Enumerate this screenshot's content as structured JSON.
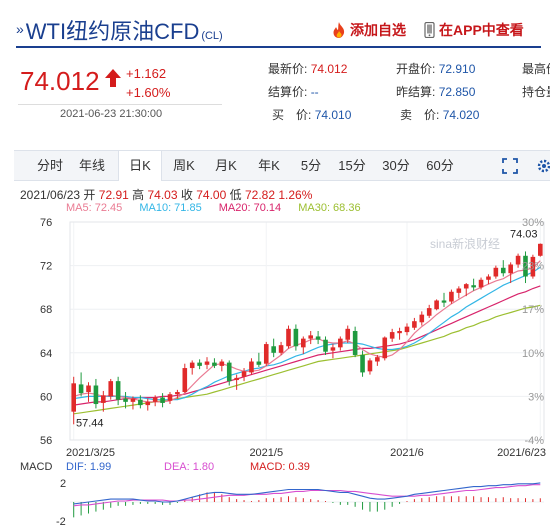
{
  "header": {
    "prefix": "»",
    "title": "WTI纽约原油CFD",
    "code": "(CL)",
    "favorite_label": "添加自选",
    "app_label": "在APP中查看"
  },
  "quote": {
    "price": "74.012",
    "change": "+1.162",
    "change_pct": "+1.60%",
    "datetime": "2021-06-23 21:30:00",
    "fields": {
      "latest_label": "最新价:",
      "latest_value": "74.012",
      "open_label": "开盘价:",
      "open_value": "72.910",
      "high_label": "最高价",
      "settle_label": "结算价:",
      "settle_value": "--",
      "prev_settle_label": "昨结算:",
      "prev_settle_value": "72.850",
      "oi_label": "持仓量",
      "buy_label": "买　价:",
      "buy_value": "74.010",
      "sell_label": "卖　价:",
      "sell_value": "74.020"
    }
  },
  "tabs": [
    "分时",
    "年线",
    "日K",
    "周K",
    "月K",
    "年K",
    "5分",
    "15分",
    "30分",
    "60分"
  ],
  "active_tab": "日K",
  "chart_info": {
    "date": "2021/06/23",
    "open_label": "开",
    "open": "72.91",
    "high_label": "高",
    "high": "74.03",
    "close_label": "收",
    "close": "74.00",
    "low_label": "低",
    "low": "72.82",
    "pct": "1.26%"
  },
  "ma_labels": {
    "ma5": "MA5: 72.45",
    "ma10": "MA10: 71.85",
    "ma20": "MA20: 70.14",
    "ma30": "MA30: 68.36"
  },
  "macd_labels": {
    "name": "MACD",
    "dif": "DIF: 1.99",
    "dea": "DEA: 1.80",
    "macd": "MACD: 0.39"
  },
  "watermark": "sina新浪财经",
  "colors": {
    "up": "#e02a2a",
    "down": "#1f9a3f",
    "ma5": "#ea7b93",
    "ma10": "#33b6e6",
    "ma20": "#d8246b",
    "ma30": "#9cbf31",
    "dif": "#3366cc",
    "dea": "#d84fd0",
    "brand": "#1a3f8f"
  },
  "chart_data": {
    "type": "candlestick",
    "y_ticks": [
      "76",
      "72",
      "68",
      "64",
      "60",
      "56"
    ],
    "pct_ticks": [
      "30%",
      "23%",
      "17%",
      "10%",
      "3%",
      "-4%"
    ],
    "x_ticks": [
      "2021/3/25",
      "2021/5",
      "2021/6",
      "2021/6/23"
    ],
    "ylim": [
      56,
      76
    ],
    "max_label": "74.03",
    "min_label": "57.44",
    "candles": [
      [
        58.6,
        61.8,
        57.44,
        61.2
      ],
      [
        61.1,
        62.2,
        60.0,
        60.3
      ],
      [
        60.4,
        61.3,
        59.5,
        61.0
      ],
      [
        61.0,
        61.6,
        58.9,
        59.3
      ],
      [
        59.4,
        60.5,
        58.6,
        60.1
      ],
      [
        60.0,
        61.6,
        59.7,
        61.4
      ],
      [
        61.4,
        61.8,
        59.2,
        59.7
      ],
      [
        59.8,
        60.4,
        58.9,
        59.5
      ],
      [
        59.5,
        60.0,
        58.8,
        59.8
      ],
      [
        59.7,
        60.1,
        58.9,
        59.2
      ],
      [
        59.2,
        59.8,
        58.7,
        59.5
      ],
      [
        59.5,
        60.1,
        59.1,
        59.9
      ],
      [
        59.9,
        60.3,
        59.0,
        59.4
      ],
      [
        59.6,
        60.4,
        59.3,
        60.2
      ],
      [
        60.2,
        60.6,
        59.8,
        60.4
      ],
      [
        60.4,
        63.0,
        60.3,
        62.6
      ],
      [
        62.6,
        63.3,
        62.0,
        63.1
      ],
      [
        63.1,
        63.4,
        62.5,
        62.8
      ],
      [
        62.9,
        63.6,
        62.5,
        63.2
      ],
      [
        63.1,
        63.5,
        62.6,
        62.8
      ],
      [
        62.8,
        63.4,
        62.3,
        63.2
      ],
      [
        63.1,
        63.3,
        61.0,
        61.4
      ],
      [
        61.5,
        62.0,
        60.6,
        61.7
      ],
      [
        61.8,
        62.6,
        61.4,
        62.3
      ],
      [
        62.2,
        63.5,
        62.0,
        63.2
      ],
      [
        63.2,
        64.0,
        62.7,
        62.9
      ],
      [
        63.0,
        65.0,
        62.8,
        64.8
      ],
      [
        64.6,
        65.3,
        63.6,
        64.0
      ],
      [
        64.0,
        65.0,
        63.8,
        64.7
      ],
      [
        64.6,
        66.5,
        64.4,
        66.2
      ],
      [
        66.2,
        66.6,
        64.2,
        64.6
      ],
      [
        64.5,
        65.5,
        63.9,
        65.3
      ],
      [
        65.3,
        66.0,
        64.8,
        65.6
      ],
      [
        65.5,
        66.0,
        64.8,
        65.2
      ],
      [
        65.2,
        65.5,
        63.8,
        64.1
      ],
      [
        64.2,
        64.8,
        63.5,
        64.5
      ],
      [
        64.5,
        65.5,
        64.2,
        65.3
      ],
      [
        65.2,
        66.5,
        64.9,
        66.2
      ],
      [
        66.0,
        66.4,
        63.6,
        63.8
      ],
      [
        63.8,
        64.2,
        61.8,
        62.2
      ],
      [
        62.3,
        63.5,
        62.0,
        63.3
      ],
      [
        63.2,
        63.8,
        62.8,
        63.6
      ],
      [
        63.5,
        65.5,
        63.3,
        65.4
      ],
      [
        65.3,
        66.2,
        65.0,
        65.9
      ],
      [
        65.8,
        66.3,
        65.2,
        66.0
      ],
      [
        65.9,
        66.7,
        65.6,
        66.4
      ],
      [
        66.3,
        67.2,
        66.1,
        66.9
      ],
      [
        66.8,
        67.8,
        66.5,
        67.5
      ],
      [
        67.4,
        68.4,
        67.2,
        68.1
      ],
      [
        68.0,
        68.9,
        67.9,
        68.8
      ],
      [
        68.8,
        69.5,
        68.2,
        68.6
      ],
      [
        68.7,
        69.8,
        68.5,
        69.6
      ],
      [
        69.5,
        70.1,
        69.0,
        69.9
      ],
      [
        69.9,
        70.4,
        69.2,
        70.3
      ],
      [
        70.2,
        70.8,
        69.7,
        70.0
      ],
      [
        70.0,
        70.9,
        69.8,
        70.7
      ],
      [
        70.7,
        71.2,
        70.3,
        71.0
      ],
      [
        71.0,
        72.0,
        70.8,
        71.8
      ],
      [
        71.8,
        72.5,
        71.0,
        71.3
      ],
      [
        71.3,
        72.3,
        70.4,
        72.1
      ],
      [
        72.1,
        73.1,
        71.8,
        72.9
      ],
      [
        72.9,
        73.3,
        70.4,
        71.0
      ],
      [
        71.0,
        73.0,
        70.8,
        72.8
      ],
      [
        72.9,
        74.03,
        72.82,
        74.0
      ]
    ],
    "ma": {
      "ma5": [
        60.0,
        60.2,
        60.3,
        60.2,
        60.0,
        60.1,
        60.0,
        59.9,
        59.8,
        59.6,
        59.5,
        59.5,
        59.5,
        59.6,
        59.9,
        60.3,
        61.0,
        61.7,
        62.3,
        62.9,
        63.0,
        62.8,
        62.5,
        62.3,
        62.3,
        62.4,
        62.8,
        63.3,
        63.8,
        64.4,
        64.7,
        64.9,
        65.2,
        65.3,
        65.0,
        64.9,
        64.9,
        65.1,
        64.8,
        64.3,
        63.9,
        63.7,
        63.6,
        63.8,
        64.3,
        65.0,
        65.8,
        66.4,
        66.9,
        67.5,
        68.0,
        68.5,
        68.9,
        69.3,
        69.7,
        70.0,
        70.3,
        70.6,
        70.8,
        71.2,
        71.5,
        71.6,
        71.8,
        72.45
      ],
      "ma10": [
        59.8,
        59.9,
        60.0,
        60.0,
        60.0,
        60.0,
        60.0,
        60.0,
        59.9,
        59.9,
        59.8,
        59.7,
        59.7,
        59.7,
        59.7,
        59.9,
        60.2,
        60.6,
        60.9,
        61.3,
        61.6,
        61.9,
        62.1,
        62.3,
        62.5,
        62.6,
        62.8,
        62.9,
        63.1,
        63.4,
        63.7,
        63.9,
        64.2,
        64.5,
        64.7,
        64.8,
        64.9,
        64.9,
        64.9,
        64.8,
        64.6,
        64.4,
        64.3,
        64.3,
        64.4,
        64.6,
        64.9,
        65.3,
        65.8,
        66.3,
        66.8,
        67.3,
        67.7,
        68.2,
        68.6,
        69.0,
        69.4,
        69.8,
        70.2,
        70.5,
        70.8,
        71.1,
        71.4,
        71.85
      ],
      "ma20": [
        59.2,
        59.3,
        59.4,
        59.5,
        59.5,
        59.6,
        59.7,
        59.8,
        59.8,
        59.9,
        59.9,
        59.9,
        60.0,
        60.0,
        60.1,
        60.2,
        60.4,
        60.6,
        60.8,
        61.0,
        61.2,
        61.4,
        61.6,
        61.8,
        62.0,
        62.2,
        62.4,
        62.6,
        62.8,
        63.0,
        63.2,
        63.4,
        63.6,
        63.8,
        63.9,
        64.0,
        64.1,
        64.2,
        64.3,
        64.4,
        64.4,
        64.5,
        64.6,
        64.7,
        64.8,
        65.0,
        65.2,
        65.5,
        65.8,
        66.1,
        66.4,
        66.7,
        67.0,
        67.3,
        67.6,
        67.9,
        68.2,
        68.5,
        68.8,
        69.1,
        69.4,
        69.6,
        69.9,
        70.14
      ],
      "ma30": [
        58.4,
        58.5,
        58.6,
        58.7,
        58.8,
        58.9,
        59.0,
        59.1,
        59.2,
        59.3,
        59.4,
        59.5,
        59.6,
        59.7,
        59.8,
        59.9,
        60.0,
        60.1,
        60.2,
        60.4,
        60.6,
        60.8,
        61.0,
        61.2,
        61.4,
        61.6,
        61.8,
        62.0,
        62.2,
        62.4,
        62.6,
        62.8,
        63.0,
        63.2,
        63.3,
        63.4,
        63.5,
        63.6,
        63.7,
        63.8,
        63.9,
        64.0,
        64.1,
        64.2,
        64.3,
        64.5,
        64.7,
        64.9,
        65.1,
        65.3,
        65.5,
        65.8,
        66.0,
        66.3,
        66.5,
        66.8,
        67.0,
        67.3,
        67.5,
        67.7,
        67.9,
        68.1,
        68.2,
        68.36
      ]
    },
    "macd": {
      "ylim": [
        -2.5,
        2.5
      ],
      "y_ticks": [
        "2",
        "-2"
      ],
      "dif": [
        -0.2,
        -0.1,
        0.0,
        0.1,
        0.2,
        0.3,
        0.3,
        0.3,
        0.3,
        0.2,
        0.1,
        0.1,
        0.0,
        0.0,
        0.1,
        0.3,
        0.5,
        0.7,
        0.9,
        1.0,
        1.0,
        0.9,
        0.8,
        0.8,
        0.8,
        0.9,
        1.0,
        1.1,
        1.2,
        1.3,
        1.3,
        1.3,
        1.3,
        1.3,
        1.2,
        1.1,
        1.0,
        1.0,
        0.8,
        0.6,
        0.4,
        0.3,
        0.3,
        0.4,
        0.5,
        0.6,
        0.8,
        0.9,
        1.0,
        1.1,
        1.2,
        1.3,
        1.4,
        1.5,
        1.6,
        1.6,
        1.7,
        1.7,
        1.8,
        1.8,
        1.9,
        1.9,
        1.9,
        1.99
      ],
      "dea": [
        -0.4,
        -0.3,
        -0.3,
        -0.2,
        -0.1,
        0.0,
        0.1,
        0.1,
        0.2,
        0.2,
        0.2,
        0.2,
        0.2,
        0.1,
        0.1,
        0.2,
        0.2,
        0.3,
        0.4,
        0.5,
        0.6,
        0.7,
        0.7,
        0.7,
        0.8,
        0.8,
        0.8,
        0.9,
        0.9,
        1.0,
        1.1,
        1.1,
        1.2,
        1.2,
        1.2,
        1.2,
        1.2,
        1.1,
        1.1,
        1.0,
        0.9,
        0.8,
        0.7,
        0.6,
        0.6,
        0.6,
        0.6,
        0.7,
        0.7,
        0.8,
        0.9,
        1.0,
        1.1,
        1.2,
        1.2,
        1.3,
        1.4,
        1.5,
        1.5,
        1.6,
        1.7,
        1.7,
        1.8,
        1.8
      ],
      "hist": [
        -1.6,
        -1.4,
        -1.2,
        -1.0,
        -0.8,
        -0.6,
        -0.4,
        -0.4,
        -0.3,
        -0.2,
        -0.2,
        -0.2,
        -0.3,
        -0.3,
        -0.1,
        0.2,
        0.5,
        0.8,
        1.0,
        1.0,
        0.8,
        0.5,
        0.3,
        0.2,
        0.1,
        0.2,
        0.4,
        0.4,
        0.5,
        0.6,
        0.5,
        0.4,
        0.3,
        0.2,
        0.1,
        -0.1,
        -0.3,
        -0.3,
        -0.5,
        -0.8,
        -1.0,
        -1.0,
        -0.8,
        -0.5,
        -0.2,
        0.1,
        0.3,
        0.4,
        0.5,
        0.6,
        0.6,
        0.6,
        0.6,
        0.6,
        0.6,
        0.5,
        0.5,
        0.4,
        0.5,
        0.4,
        0.4,
        0.4,
        0.3,
        0.39
      ]
    }
  }
}
